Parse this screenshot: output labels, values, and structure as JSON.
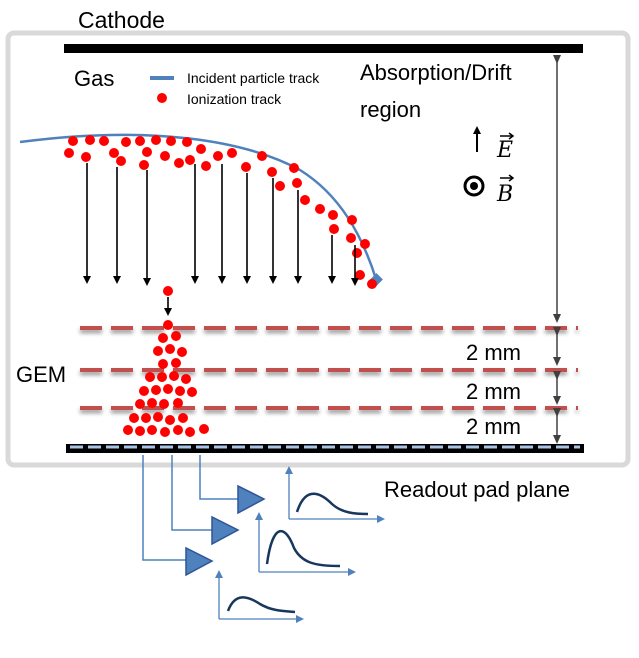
{
  "labels": {
    "cathode": "Cathode",
    "gas": "Gas",
    "absorption_line1": "Absorption/Drift",
    "absorption_line2": "region",
    "gem": "GEM",
    "gap_1": "2 mm",
    "gap_2": "2 mm",
    "gap_3": "2 mm",
    "readout": "Readout  pad plane",
    "e_field": "E",
    "b_field": "B"
  },
  "legend": {
    "incident_track": "Incident particle track",
    "ionization_track": "Ionization track"
  },
  "colors": {
    "electrode": "#000000",
    "incident_track": "#4f81bd",
    "ionization": "#ff0000",
    "gem_foil": "#c0504d",
    "signal": "#4f81bd",
    "amplifier": "#4f81bd",
    "frame": "#d9d9d9"
  },
  "icons": {
    "e_field": "up-arrow-icon",
    "b_field": "out-of-page-dot-icon",
    "amplifier": "triangle-amplifier-icon"
  }
}
